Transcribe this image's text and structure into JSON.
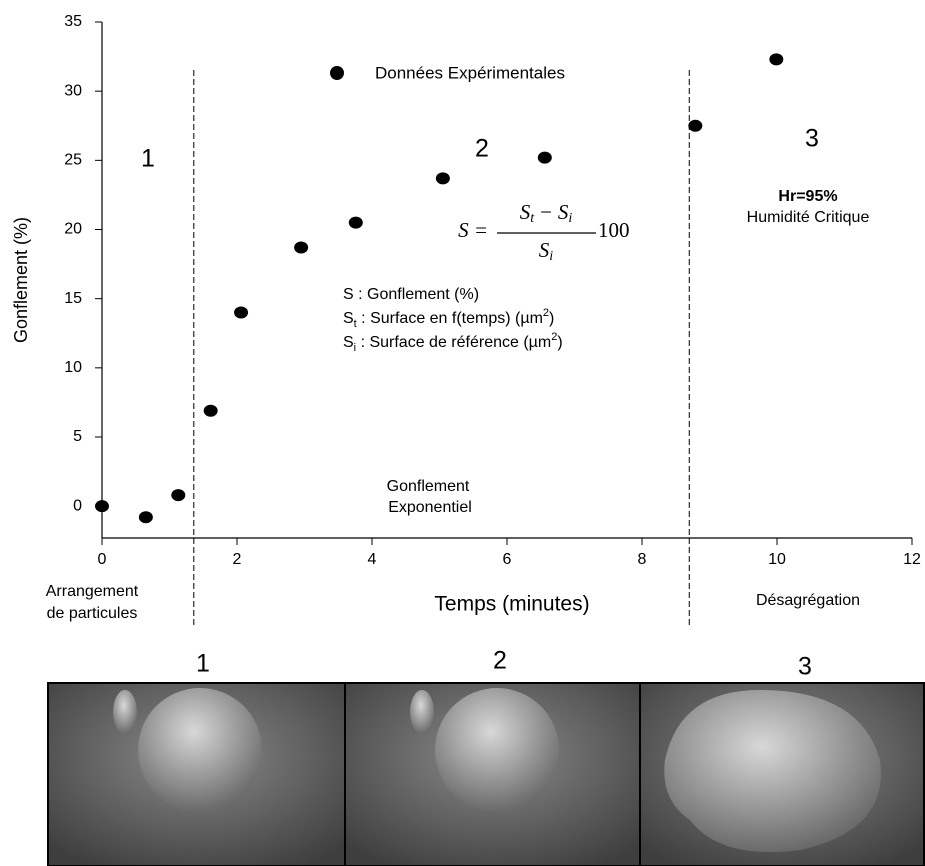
{
  "chart_data": {
    "type": "scatter",
    "x_label": "Temps (minutes)",
    "y_label": "Gonflement (%)",
    "xlim": [
      0,
      12
    ],
    "xticks": [
      0,
      2,
      4,
      6,
      8,
      10,
      12
    ],
    "ylim": [
      -2.3,
      35
    ],
    "yticks": [
      0,
      5,
      10,
      15,
      20,
      25,
      30,
      35
    ],
    "series": [
      {
        "name": "Données Expérimentales",
        "color": "#000000",
        "x": [
          0,
          0.65,
          1.13,
          1.61,
          2.06,
          2.95,
          3.76,
          5.05,
          6.56,
          8.79,
          9.99
        ],
        "values": [
          0,
          -0.8,
          0.8,
          6.9,
          14.0,
          18.7,
          20.5,
          23.7,
          25.2,
          27.5,
          32.3
        ]
      }
    ],
    "dividers": [
      1.36,
      8.7
    ],
    "zones": [
      "1",
      "2",
      "3"
    ],
    "hr": "Hr=95%",
    "critical": "Humidité Critique",
    "formula": {
      "lhs": "S =",
      "num_a": "S",
      "num_a_sub": "t",
      "minus": "−",
      "num_b": "S",
      "num_b_sub": "i",
      "den": "S",
      "den_sub": "i",
      "factor": "100"
    },
    "definitions": [
      [
        {
          "text": "S : Gonflement (%)"
        }
      ],
      [
        {
          "text": "S"
        },
        {
          "text": "t",
          "shift": "sub"
        },
        {
          "text": " : Surface en f(temps) (µm"
        },
        {
          "text": "2",
          "shift": "sup"
        },
        {
          "text": ")"
        }
      ],
      [
        {
          "text": "S"
        },
        {
          "text": "i",
          "shift": "sub"
        },
        {
          "text": " :  Surface de référence (µm"
        },
        {
          "text": "2",
          "shift": "sup"
        },
        {
          "text": ")"
        }
      ]
    ],
    "phase_labels": {
      "arrangement": [
        "Arrangement",
        "de particules"
      ],
      "exponential": [
        "Gonflement",
        "Exponentiel"
      ],
      "disaggregation": "Désagrégation"
    },
    "image_labels": [
      "1",
      "2",
      "3"
    ]
  }
}
